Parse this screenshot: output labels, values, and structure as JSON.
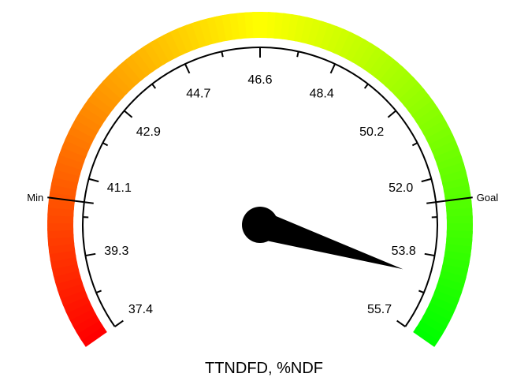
{
  "chart_data": {
    "type": "gauge",
    "title": "TTNDFD, %NDF",
    "min": 37.4,
    "max": 55.7,
    "value": 54.4,
    "tick_labels": [
      "37.4",
      "39.3",
      "41.1",
      "42.9",
      "44.7",
      "46.6",
      "48.4",
      "50.2",
      "52.0",
      "53.8",
      "55.7"
    ],
    "markers": [
      {
        "label": "Min",
        "value": 40.5
      },
      {
        "label": "Goal",
        "value": 52.6
      }
    ],
    "color_band": {
      "from": "#ff0000",
      "via": "#ffff00",
      "to": "#00ff00"
    },
    "needle_color": "#000000"
  }
}
